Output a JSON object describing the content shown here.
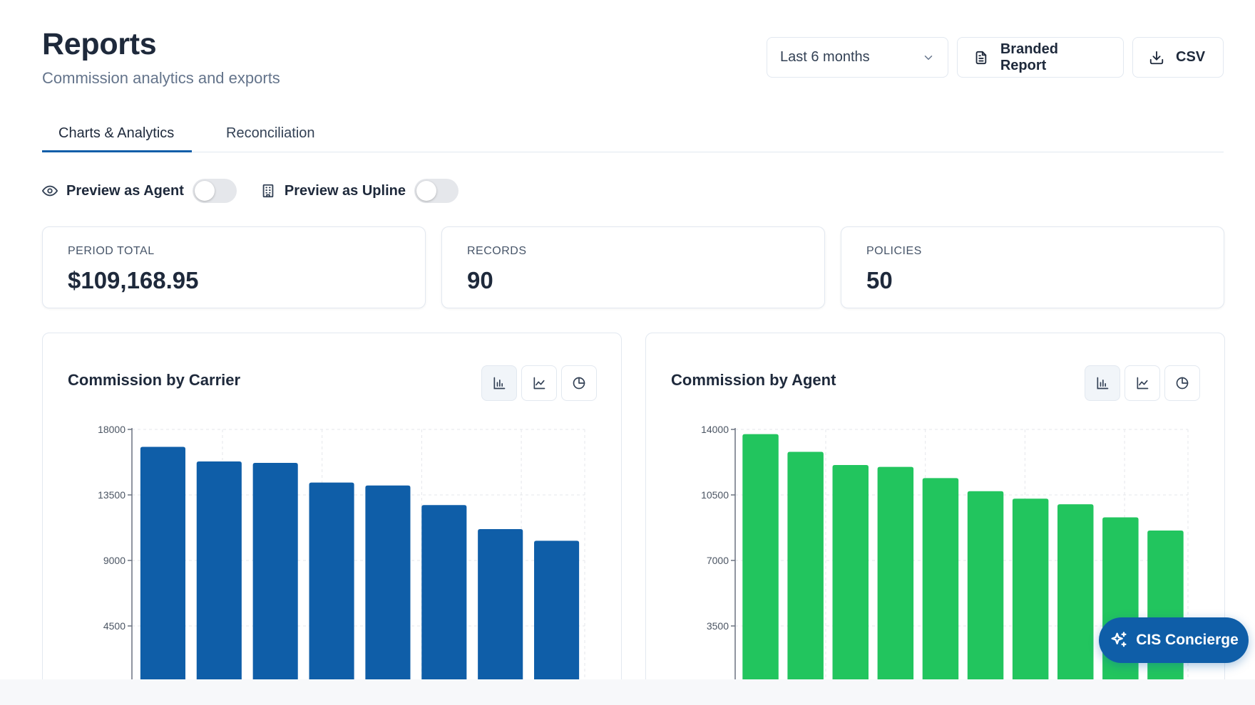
{
  "header": {
    "title": "Reports",
    "subtitle": "Commission analytics and exports",
    "range_label": "Last 6 months",
    "branded_label": "Branded Report",
    "csv_label": "CSV"
  },
  "tabs": [
    {
      "label": "Charts & Analytics",
      "active": true
    },
    {
      "label": "Reconciliation",
      "active": false
    }
  ],
  "preview": {
    "agent_label": "Preview as Agent",
    "agent_on": false,
    "upline_label": "Preview as Upline",
    "upline_on": false
  },
  "stats": [
    {
      "label": "PERIOD TOTAL",
      "value": "$109,168.95"
    },
    {
      "label": "RECORDS",
      "value": "90"
    },
    {
      "label": "POLICIES",
      "value": "50"
    }
  ],
  "chart_titles": {
    "carrier": "Commission by Carrier",
    "agent": "Commission by Agent"
  },
  "fab_label": "CIS Concierge",
  "colors": {
    "brand_blue": "#0f5ea8",
    "agent_green": "#22c55e"
  },
  "chart_data": [
    {
      "type": "bar",
      "title": "Commission by Carrier",
      "series": [
        {
          "values": [
            16800,
            15800,
            15700,
            14350,
            14150,
            12800,
            11150,
            10350
          ]
        }
      ],
      "yticks": [
        4500,
        9000,
        13500,
        18000
      ],
      "ylim": [
        0,
        18000
      ],
      "grid": true,
      "color": "#0f5ea8"
    },
    {
      "type": "bar",
      "title": "Commission by Agent",
      "series": [
        {
          "values": [
            13750,
            12800,
            12100,
            12000,
            11400,
            10700,
            10300,
            10000,
            9300,
            8600
          ]
        }
      ],
      "yticks": [
        3500,
        7000,
        10500,
        14000
      ],
      "ylim": [
        0,
        14000
      ],
      "grid": true,
      "color": "#22c55e"
    }
  ]
}
